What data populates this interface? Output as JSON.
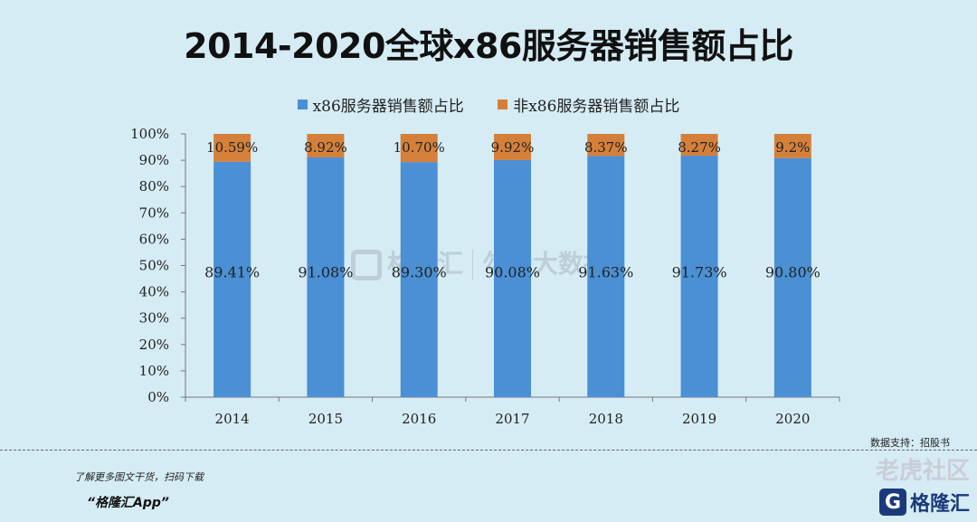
{
  "chart_data": {
    "type": "bar",
    "stacked": true,
    "title": "2014-2020全球x86服务器销售额占比",
    "categories": [
      "2014",
      "2015",
      "2016",
      "2017",
      "2018",
      "2019",
      "2020"
    ],
    "series": [
      {
        "name": "x86服务器销售额占比",
        "color": "#4b8fd4",
        "values": [
          89.41,
          91.08,
          89.3,
          90.08,
          91.63,
          91.73,
          90.8
        ],
        "labels": [
          "89.41%",
          "91.08%",
          "89.30%",
          "90.08%",
          "91.63%",
          "91.73%",
          "90.80%"
        ]
      },
      {
        "name": "非x86服务器销售额占比",
        "color": "#d5803a",
        "values": [
          10.59,
          8.92,
          10.7,
          9.92,
          8.37,
          8.27,
          9.2
        ],
        "labels": [
          "10.59%",
          "8.92%",
          "10.70%",
          "9.92%",
          "8.37%",
          "8.27%",
          "9.2%"
        ]
      }
    ],
    "yticks": [
      "0%",
      "10%",
      "20%",
      "30%",
      "40%",
      "50%",
      "60%",
      "70%",
      "80%",
      "90%",
      "100%"
    ],
    "ylim": [
      0,
      100
    ],
    "legend_position": "top-center"
  },
  "footer": {
    "source": "数据支持：招股书",
    "promo": "了解更多图文干货，扫码下载",
    "app": "“格隆汇App”"
  },
  "watermarks": {
    "center_brand": "格隆汇",
    "center_partner": "勾股大数据",
    "weibo": "老虎社区",
    "corner_brand": "格隆汇",
    "corner_logo": "G"
  }
}
